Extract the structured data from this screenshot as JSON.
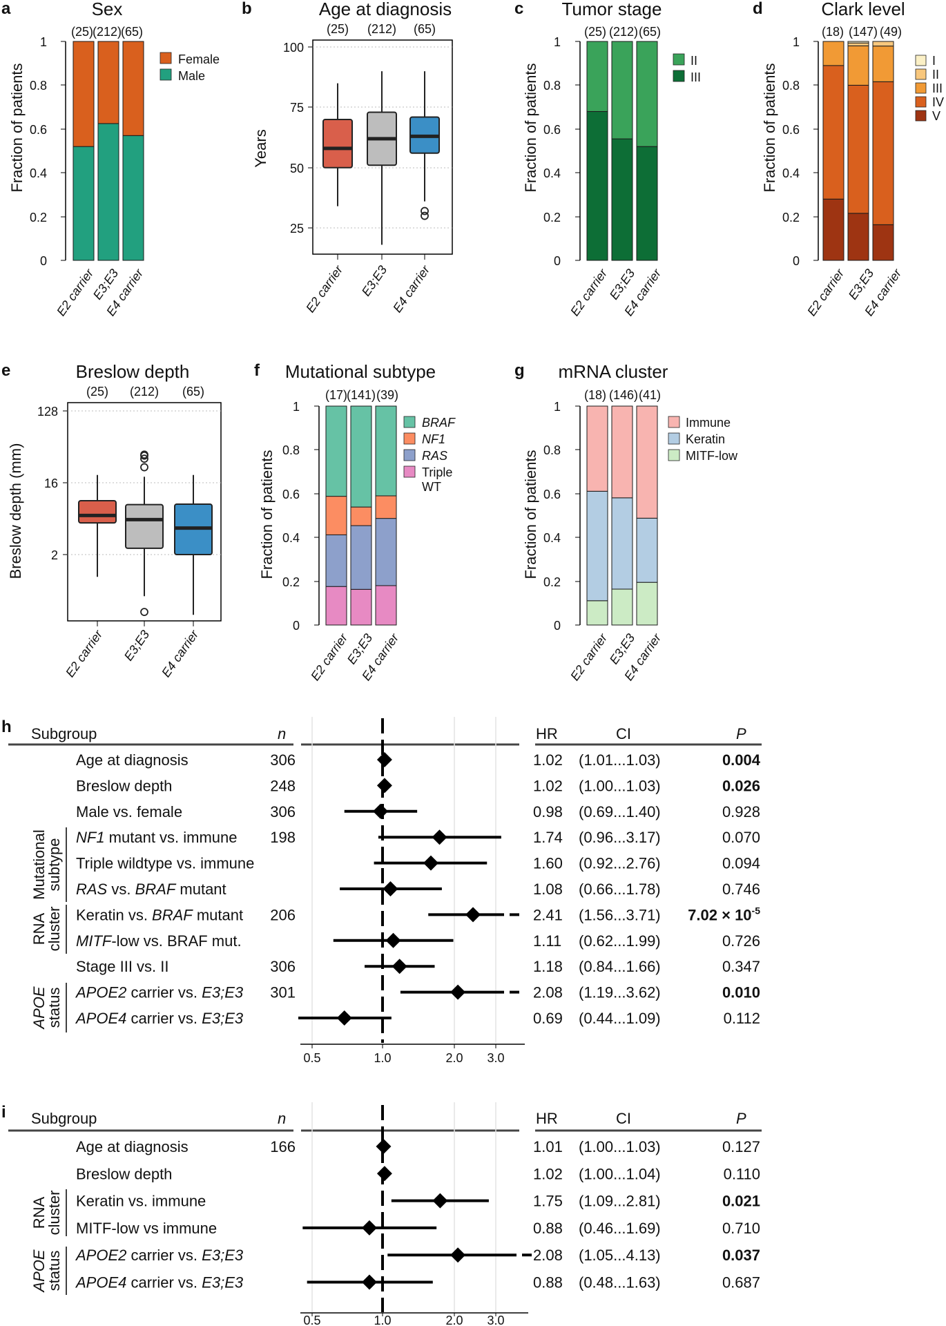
{
  "panels": {
    "a": {
      "label": "a",
      "title": "Sex",
      "ylabel": "Fraction of patients",
      "yticks": [
        "0",
        "0.2",
        "0.4",
        "0.6",
        "0.8",
        "1"
      ],
      "ns": [
        "(25)",
        "(212)",
        "(65)"
      ],
      "categories": [
        "E2 carrier",
        "E3;E3",
        "E4 carrier"
      ],
      "legend": [
        "Female",
        "Male"
      ]
    },
    "b": {
      "label": "b",
      "title": "Age at diagnosis",
      "ylabel": "Years",
      "yticks": [
        "25",
        "50",
        "75",
        "100"
      ],
      "ns": [
        "(25)",
        "(212)",
        "(65)"
      ],
      "categories": [
        "E2 carrier",
        "E3;E3",
        "E4 carrier"
      ]
    },
    "c": {
      "label": "c",
      "title": "Tumor stage",
      "ylabel": "Fraction of patients",
      "yticks": [
        "0",
        "0.2",
        "0.4",
        "0.6",
        "0.8",
        "1"
      ],
      "ns": [
        "(25)",
        "(212)",
        "(65)"
      ],
      "categories": [
        "E2 carrier",
        "E3;E3",
        "E4 carrier"
      ],
      "legend": [
        "II",
        "III"
      ]
    },
    "d": {
      "label": "d",
      "title": "Clark level",
      "ylabel": "Fraction of patients",
      "yticks": [
        "0",
        "0.2",
        "0.4",
        "0.6",
        "0.8",
        "1"
      ],
      "ns": [
        "(18)",
        "(147)",
        "(49)"
      ],
      "categories": [
        "E2 carrier",
        "E3;E3",
        "E4 carrier"
      ],
      "legend": [
        "I",
        "II",
        "III",
        "IV",
        "V"
      ]
    },
    "e": {
      "label": "e",
      "title": "Breslow depth",
      "ylabel": "Breslow depth (mm)",
      "yticks": [
        "2",
        "16",
        "128"
      ],
      "ns": [
        "(25)",
        "(212)",
        "(65)"
      ],
      "categories": [
        "E2 carrier",
        "E3;E3",
        "E4 carrier"
      ]
    },
    "f": {
      "label": "f",
      "title": "Mutational subtype",
      "ylabel": "Fraction of patients",
      "yticks": [
        "0",
        "0.2",
        "0.4",
        "0.6",
        "0.8",
        "1"
      ],
      "ns": [
        "(17)",
        "(141)",
        "(39)"
      ],
      "categories": [
        "E2 carrier",
        "E3;E3",
        "E4 carrier"
      ],
      "legend": [
        "BRAF",
        "NF1",
        "RAS",
        "Triple",
        "WT"
      ]
    },
    "g": {
      "label": "g",
      "title": "mRNA cluster",
      "ylabel": "Fraction of patients",
      "yticks": [
        "0",
        "0.2",
        "0.4",
        "0.6",
        "0.8",
        "1"
      ],
      "ns": [
        "(18)",
        "(146)",
        "(41)"
      ],
      "categories": [
        "E2 carrier",
        "E3;E3",
        "E4 carrier"
      ],
      "legend": [
        "Immune",
        "Keratin",
        "MITF-low"
      ]
    },
    "h": {
      "label": "h",
      "header": {
        "subgroup": "Subgroup",
        "n": "n",
        "hr": "HR",
        "ci": "CI",
        "p": "P"
      },
      "groups": [
        "Mutational",
        "subtype",
        "RNA",
        "cluster",
        "APOE",
        "status"
      ],
      "xticks": [
        "0.5",
        "1.0",
        "2.0",
        "3.0"
      ],
      "rows": [
        {
          "pre": "",
          "lab": "Age at diagnosis",
          "n": "306",
          "hr": "1.02",
          "ci": "(1.01...1.03)",
          "p": "0.004"
        },
        {
          "pre": "",
          "lab": "Breslow depth",
          "n": "248",
          "hr": "1.02",
          "ci": "(1.00...1.03)",
          "p": "0.026"
        },
        {
          "pre": "",
          "lab": "Male vs. female",
          "n": "306",
          "hr": "0.98",
          "ci": "(0.69...1.40)",
          "p": "0.928"
        },
        {
          "pre": "NF1",
          "lab": " mutant vs. immune",
          "n": "198",
          "hr": "1.74",
          "ci": "(0.96...3.17)",
          "p": "0.070"
        },
        {
          "pre": "",
          "lab": "Triple wildtype vs. immune",
          "n": "",
          "hr": "1.60",
          "ci": "(0.92...2.76)",
          "p": "0.094"
        },
        {
          "pre": "RAS",
          "lab": " vs. ",
          "it2": "BRAF",
          "lab2": " mutant",
          "n": "",
          "hr": "1.08",
          "ci": "(0.66...1.78)",
          "p": "0.746"
        },
        {
          "pre": "",
          "lab": "Keratin vs. ",
          "it2": "BRAF",
          "lab2": " mutant",
          "n": "206",
          "hr": "2.41",
          "ci": "(1.56...3.71)",
          "p": "7.02 × 10",
          "psup": "-5"
        },
        {
          "pre": "MITF",
          "lab": "-low vs. BRAF mut.",
          "n": "",
          "hr": "1.11",
          "ci": "(0.62...1.99)",
          "p": "0.726"
        },
        {
          "pre": "",
          "lab": "Stage III vs. II",
          "n": "306",
          "hr": "1.18",
          "ci": "(0.84...1.66)",
          "p": "0.347"
        },
        {
          "pre": "APOE2",
          "lab": " carrier vs. ",
          "it2": "E3;E3",
          "lab2": "",
          "n": "301",
          "hr": "2.08",
          "ci": "(1.19...3.62)",
          "p": "0.010"
        },
        {
          "pre": "APOE4",
          "lab": " carrier vs. ",
          "it2": "E3;E3",
          "lab2": "",
          "n": "",
          "hr": "0.69",
          "ci": "(0.44...1.09)",
          "p": "0.112"
        }
      ]
    },
    "i": {
      "label": "i",
      "header": {
        "subgroup": "Subgroup",
        "n": "n",
        "hr": "HR",
        "ci": "CI",
        "p": "P"
      },
      "groups": [
        "RNA",
        "cluster",
        "APOE",
        "status"
      ],
      "xticks": [
        "0.5",
        "1.0",
        "2.0",
        "3.0"
      ],
      "rows": [
        {
          "pre": "",
          "lab": "Age at diagnosis",
          "n": "166",
          "hr": "1.01",
          "ci": "(1.00...1.03)",
          "p": "0.127"
        },
        {
          "pre": "",
          "lab": "Breslow depth",
          "n": "",
          "hr": "1.02",
          "ci": "(1.00...1.04)",
          "p": "0.110"
        },
        {
          "pre": "",
          "lab": "Keratin vs. immune",
          "n": "",
          "hr": "1.75",
          "ci": "(1.09...2.81)",
          "p": "0.021"
        },
        {
          "pre": "",
          "lab": "MITF-low vs immune",
          "n": "",
          "hr": "0.88",
          "ci": "(0.46...1.69)",
          "p": "0.710"
        },
        {
          "pre": "APOE2",
          "lab": " carrier vs. ",
          "it2": "E3;E3",
          "lab2": "",
          "n": "",
          "hr": "2.08",
          "ci": "(1.05...4.13)",
          "p": "0.037"
        },
        {
          "pre": "APOE4",
          "lab": " carrier vs. ",
          "it2": "E3;E3",
          "lab2": "",
          "n": "",
          "hr": "0.88",
          "ci": "(0.48...1.63)",
          "p": "0.687"
        }
      ]
    }
  },
  "colors": {
    "female": "#d9601e",
    "male": "#22a07f",
    "stage2": "#3aa35a",
    "stage3": "#0d6e36",
    "clark1": "#fbf0c6",
    "clark2": "#f8c77d",
    "clark3": "#f19a35",
    "clark4": "#d9601e",
    "clark5": "#9e3412",
    "braf": "#66c2a5",
    "nf1": "#fc8d62",
    "ras": "#8da0cb",
    "triple": "#e78ac3",
    "immune": "#f8b4b0",
    "keratin": "#b3cde3",
    "mitf": "#ccebc5",
    "box_e2": "#d95f4b",
    "box_e3": "#bdbdbd",
    "box_e4": "#3b8fc6"
  },
  "chart_data": [
    {
      "type": "bar",
      "stacked": true,
      "title": "Sex",
      "ylabel": "Fraction of patients",
      "ylim": [
        0,
        1
      ],
      "categories": [
        "E2 carrier",
        "E3;E3",
        "E4 carrier"
      ],
      "series": [
        {
          "name": "Male",
          "values": [
            0.52,
            0.625,
            0.57
          ]
        },
        {
          "name": "Female",
          "values": [
            0.48,
            0.375,
            0.43
          ]
        }
      ]
    },
    {
      "type": "box",
      "title": "Age at diagnosis",
      "ylabel": "Years",
      "ylim": [
        15,
        102
      ],
      "categories": [
        "E2 carrier",
        "E3;E3",
        "E4 carrier"
      ],
      "boxes": [
        {
          "whisker_low": 34,
          "q1": 50,
          "median": 58,
          "q3": 70,
          "whisker_high": 85,
          "outliers": []
        },
        {
          "whisker_low": 18,
          "q1": 51,
          "median": 62,
          "q3": 73,
          "whisker_high": 90,
          "outliers": []
        },
        {
          "whisker_low": 36,
          "q1": 56,
          "median": 63,
          "q3": 71,
          "whisker_high": 90,
          "outliers": [
            30,
            32
          ]
        }
      ]
    },
    {
      "type": "bar",
      "stacked": true,
      "title": "Tumor stage",
      "ylabel": "Fraction of patients",
      "ylim": [
        0,
        1
      ],
      "categories": [
        "E2 carrier",
        "E3;E3",
        "E4 carrier"
      ],
      "series": [
        {
          "name": "III",
          "values": [
            0.68,
            0.555,
            0.52
          ]
        },
        {
          "name": "II",
          "values": [
            0.32,
            0.445,
            0.48
          ]
        }
      ]
    },
    {
      "type": "bar",
      "stacked": true,
      "title": "Clark level",
      "ylabel": "Fraction of patients",
      "ylim": [
        0,
        1
      ],
      "categories": [
        "E2 carrier",
        "E3;E3",
        "E4 carrier"
      ],
      "series": [
        {
          "name": "V",
          "values": [
            0.28,
            0.215,
            0.163
          ]
        },
        {
          "name": "IV",
          "values": [
            0.61,
            0.585,
            0.653
          ]
        },
        {
          "name": "III",
          "values": [
            0.11,
            0.18,
            0.163
          ]
        },
        {
          "name": "II",
          "values": [
            0.0,
            0.013,
            0.021
          ]
        },
        {
          "name": "I",
          "values": [
            0.0,
            0.007,
            0.0
          ]
        }
      ]
    },
    {
      "type": "box",
      "title": "Breslow depth",
      "ylabel": "Breslow depth (mm)",
      "yscale": "log2",
      "ylim": [
        0.25,
        150
      ],
      "categories": [
        "E2 carrier",
        "E3;E3",
        "E4 carrier"
      ],
      "boxes": [
        {
          "whisker_low": 1.05,
          "q1": 5.0,
          "median": 6.2,
          "q3": 9.5,
          "whisker_high": 20,
          "outliers": []
        },
        {
          "whisker_low": 0.6,
          "q1": 2.4,
          "median": 5.5,
          "q3": 8.5,
          "whisker_high": 19,
          "outliers": [
            0.38,
            25,
            32,
            35,
            36
          ]
        },
        {
          "whisker_low": 0.35,
          "q1": 2.0,
          "median": 4.3,
          "q3": 8.6,
          "whisker_high": 20,
          "outliers": []
        }
      ]
    },
    {
      "type": "bar",
      "stacked": true,
      "title": "Mutational subtype",
      "ylabel": "Fraction of patients",
      "ylim": [
        0,
        1
      ],
      "categories": [
        "E2 carrier",
        "E3;E3",
        "E4 carrier"
      ],
      "series": [
        {
          "name": "Triple WT",
          "values": [
            0.176,
            0.163,
            0.18
          ]
        },
        {
          "name": "RAS",
          "values": [
            0.236,
            0.291,
            0.307
          ]
        },
        {
          "name": "NF1",
          "values": [
            0.176,
            0.085,
            0.103
          ]
        },
        {
          "name": "BRAF",
          "values": [
            0.412,
            0.461,
            0.41
          ]
        }
      ]
    },
    {
      "type": "bar",
      "stacked": true,
      "title": "mRNA cluster",
      "ylabel": "Fraction of patients",
      "ylim": [
        0,
        1
      ],
      "categories": [
        "E2 carrier",
        "E3;E3",
        "E4 carrier"
      ],
      "series": [
        {
          "name": "MITF-low",
          "values": [
            0.111,
            0.164,
            0.195
          ]
        },
        {
          "name": "Keratin",
          "values": [
            0.5,
            0.417,
            0.293
          ]
        },
        {
          "name": "Immune",
          "values": [
            0.389,
            0.419,
            0.512
          ]
        }
      ]
    },
    {
      "type": "forest",
      "panel": "h",
      "xscale": "log",
      "xlim": [
        0.42,
        3.5
      ],
      "reference": 1.0,
      "points": [
        {
          "hr": 1.02,
          "lo": 1.01,
          "hi": 1.03
        },
        {
          "hr": 1.02,
          "lo": 1.0,
          "hi": 1.03
        },
        {
          "hr": 0.98,
          "lo": 0.69,
          "hi": 1.4
        },
        {
          "hr": 1.74,
          "lo": 0.96,
          "hi": 3.17
        },
        {
          "hr": 1.6,
          "lo": 0.92,
          "hi": 2.76
        },
        {
          "hr": 1.08,
          "lo": 0.66,
          "hi": 1.78
        },
        {
          "hr": 2.41,
          "lo": 1.56,
          "hi": 3.71
        },
        {
          "hr": 1.11,
          "lo": 0.62,
          "hi": 1.99
        },
        {
          "hr": 1.18,
          "lo": 0.84,
          "hi": 1.66
        },
        {
          "hr": 2.08,
          "lo": 1.19,
          "hi": 3.62
        },
        {
          "hr": 0.69,
          "lo": 0.44,
          "hi": 1.09
        }
      ]
    },
    {
      "type": "forest",
      "panel": "i",
      "xscale": "log",
      "xlim": [
        0.42,
        3.5
      ],
      "reference": 1.0,
      "points": [
        {
          "hr": 1.01,
          "lo": 1.0,
          "hi": 1.03
        },
        {
          "hr": 1.02,
          "lo": 1.0,
          "hi": 1.04
        },
        {
          "hr": 1.75,
          "lo": 1.09,
          "hi": 2.81
        },
        {
          "hr": 0.88,
          "lo": 0.46,
          "hi": 1.69
        },
        {
          "hr": 2.08,
          "lo": 1.05,
          "hi": 4.13
        },
        {
          "hr": 0.88,
          "lo": 0.48,
          "hi": 1.63
        }
      ]
    }
  ]
}
